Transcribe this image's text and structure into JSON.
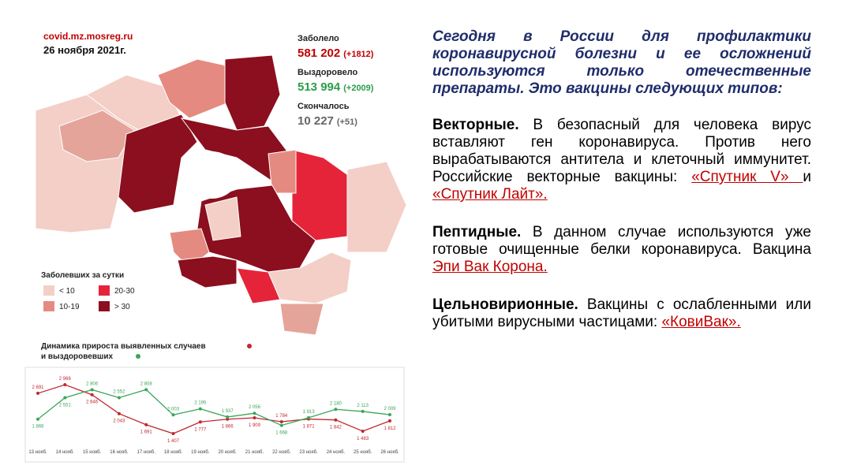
{
  "header": {
    "source": "covid.mz.mosreg.ru",
    "date": "26 ноября 2021г."
  },
  "stats": [
    {
      "label": "Заболело",
      "value": "581 202",
      "change": "(+1812)"
    },
    {
      "label": "Выздоровело",
      "value": "513 994",
      "change": "(+2009)"
    },
    {
      "label": "Скончалось",
      "value": "10 227",
      "change": "(+51)"
    }
  ],
  "legend": {
    "title": "Заболевших за сутки",
    "items": [
      "< 10",
      "10-19",
      "20-30",
      "> 30"
    ],
    "colors": [
      "#f3cfc7",
      "#e58a80",
      "#e5243a",
      "#8b0f1e"
    ]
  },
  "chart_data": {
    "type": "line",
    "title": "Динамика прироста выявленных случаев",
    "subtitle": "и выздоровевших",
    "categories": [
      "13 нояб.",
      "14 нояб.",
      "15 нояб.",
      "16 нояб.",
      "17 нояб.",
      "18 нояб.",
      "19 нояб.",
      "20 нояб.",
      "21 нояб.",
      "22 нояб.",
      "23 нояб.",
      "24 нояб.",
      "25 нояб.",
      "26 нояб."
    ],
    "series": [
      {
        "color": "#c0282d",
        "values": [
          2691,
          2966,
          2646,
          2043,
          1691,
          1407,
          1777,
          1866,
          1909,
          1784,
          1871,
          1842,
          1483,
          1812
        ],
        "value_labels": [
          "2 691",
          "2 966",
          "2 646",
          "2 043",
          "1 691",
          "1 407",
          "1 777",
          "1 866",
          "1 909",
          "1 784",
          "1 871",
          "1 842",
          "1 483",
          "1 812"
        ]
      },
      {
        "color": "#3aa55a",
        "values": [
          1866,
          2551,
          2806,
          2552,
          2808,
          2003,
          2195,
          1937,
          2056,
          1668,
          1913,
          2180,
          2113,
          2009
        ],
        "value_labels": [
          "1 866",
          "2 551",
          "2 806",
          "2 552",
          "2 808",
          "2 003",
          "2 195",
          "1 937",
          "2 056",
          "1 668",
          "1 913",
          "2 180",
          "2 113",
          "2 009"
        ]
      }
    ]
  },
  "text": {
    "intro": "Сегодня в России для профилактики коронавирусной болезни и ее осложнений используются только отечественные препараты. Это вакцины следующих типов:",
    "sections": [
      {
        "term": "Векторные.",
        "text": "В безопасный для человека вирус вставляют ген коронавируса. Против него вырабатываются антитела и клеточный иммунитет.  Российские векторные вакцины:",
        "links": [
          "«Спутник V» ",
          "«Спутник Лайт»."
        ],
        "connector": "и"
      },
      {
        "term": "Пептидные.",
        "text": "В данном случае используются уже готовые очищенные белки коронавируса. Вакцина",
        "links": [
          "Эпи Вак Корона."
        ]
      },
      {
        "term": "Цельновирионные.",
        "text": "Вакцины с ослабленными или убитыми вирусными частицами:",
        "links": [
          "«КовиВак»."
        ]
      }
    ]
  }
}
